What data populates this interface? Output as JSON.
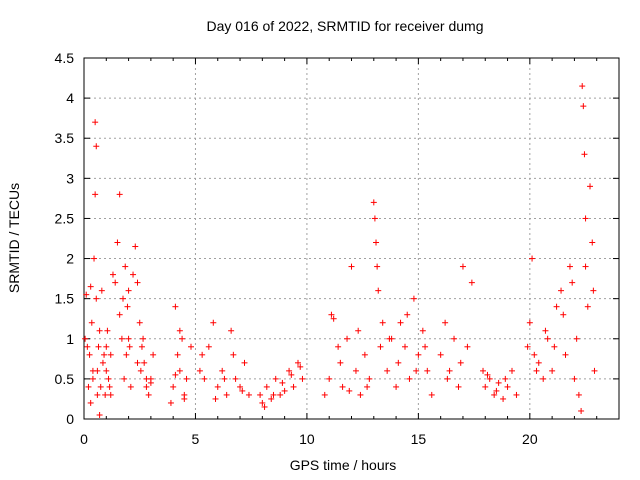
{
  "chart_data": {
    "type": "scatter",
    "title": "Day 016 of 2022, SRMTID for receiver dumg",
    "xlabel": "GPS time / hours",
    "ylabel": "SRMTID / TECUs",
    "xlim": [
      0,
      24
    ],
    "ylim": [
      0,
      4.5
    ],
    "x_ticks": [
      "0",
      "5",
      "10",
      "15",
      "20"
    ],
    "y_ticks": [
      "0",
      "0.5",
      "1",
      "1.5",
      "2",
      "2.5",
      "3",
      "3.5",
      "4",
      "4.5"
    ],
    "grid": true,
    "marker": "+",
    "color": "#ff0000",
    "series": [
      {
        "name": "SRMTID",
        "x": [
          0.05,
          0.1,
          0.15,
          0.2,
          0.25,
          0.3,
          0.35,
          0.4,
          0.45,
          0.5,
          0.5,
          0.55,
          0.55,
          0.6,
          0.6,
          0.65,
          0.7,
          0.75,
          0.8,
          0.85,
          0.9,
          0.95,
          1.0,
          1.05,
          1.1,
          1.15,
          1.2,
          1.3,
          1.4,
          1.5,
          1.6,
          1.7,
          1.75,
          1.8,
          1.85,
          1.9,
          1.95,
          2.0,
          2.05,
          2.1,
          2.2,
          2.3,
          2.4,
          2.5,
          2.55,
          2.6,
          2.65,
          2.7,
          2.8,
          2.9,
          3.0,
          3.1,
          0.3,
          0.4,
          0.7,
          1.0,
          1.2,
          1.6,
          2.0,
          2.4,
          2.8,
          3.0,
          3.9,
          4.0,
          4.1,
          4.2,
          4.3,
          4.4,
          4.5,
          4.6,
          4.8,
          4.1,
          4.3,
          4.5,
          5.2,
          5.3,
          5.4,
          5.6,
          5.8,
          6.0,
          6.2,
          6.4,
          6.6,
          6.8,
          7.0,
          7.2,
          7.4,
          5.9,
          6.3,
          6.7,
          7.1,
          7.9,
          8.0,
          8.2,
          8.4,
          8.6,
          8.8,
          9.0,
          9.2,
          9.4,
          9.6,
          9.8,
          8.1,
          8.5,
          8.9,
          9.3,
          9.7,
          10.8,
          11.0,
          11.2,
          11.4,
          11.6,
          11.8,
          12.0,
          12.2,
          12.4,
          12.6,
          12.8,
          11.1,
          11.5,
          11.9,
          12.3,
          12.7,
          13.0,
          13.05,
          13.1,
          13.15,
          13.2,
          13.4,
          13.6,
          13.8,
          14.0,
          14.2,
          14.4,
          14.6,
          14.8,
          15.0,
          15.2,
          15.4,
          15.6,
          13.3,
          13.7,
          14.1,
          14.5,
          14.9,
          15.3,
          16.0,
          16.2,
          16.4,
          16.6,
          16.8,
          17.0,
          17.2,
          17.4,
          16.3,
          16.9,
          17.9,
          18.0,
          18.2,
          18.4,
          18.6,
          18.8,
          19.0,
          19.2,
          19.4,
          18.1,
          18.5,
          18.9,
          19.9,
          20.0,
          20.1,
          20.2,
          20.4,
          20.6,
          20.8,
          21.0,
          21.2,
          21.4,
          21.6,
          21.8,
          20.3,
          20.7,
          21.1,
          21.5,
          21.9,
          22.0,
          22.2,
          22.3,
          22.35,
          22.4,
          22.45,
          22.5,
          22.6,
          22.7,
          22.8,
          22.9,
          22.1,
          22.5,
          22.85
        ],
        "y": [
          1.0,
          1.55,
          0.9,
          0.4,
          0.8,
          1.65,
          1.2,
          0.5,
          2.0,
          3.7,
          2.8,
          3.4,
          1.5,
          0.6,
          0.3,
          0.9,
          0.05,
          0.4,
          1.6,
          0.7,
          0.8,
          0.3,
          0.6,
          1.1,
          0.5,
          0.4,
          0.8,
          1.8,
          1.7,
          2.2,
          2.8,
          1.0,
          1.5,
          0.5,
          1.9,
          0.8,
          1.4,
          1.6,
          0.9,
          0.4,
          1.8,
          2.15,
          1.7,
          1.2,
          0.6,
          0.9,
          1.0,
          0.7,
          0.4,
          0.3,
          0.5,
          0.8,
          0.2,
          0.6,
          1.1,
          0.9,
          0.3,
          1.3,
          1.0,
          0.7,
          0.5,
          0.45,
          0.2,
          0.4,
          1.4,
          0.8,
          0.6,
          1.0,
          0.3,
          0.5,
          0.9,
          0.55,
          1.1,
          0.25,
          0.6,
          0.8,
          0.5,
          0.9,
          1.2,
          0.4,
          0.6,
          0.3,
          1.1,
          0.5,
          0.4,
          0.7,
          0.3,
          0.25,
          0.5,
          0.8,
          0.35,
          0.3,
          0.2,
          0.4,
          0.25,
          0.5,
          0.3,
          0.35,
          0.6,
          0.4,
          0.7,
          0.5,
          0.15,
          0.3,
          0.45,
          0.55,
          0.65,
          0.3,
          0.5,
          1.25,
          0.9,
          0.4,
          1.0,
          1.9,
          0.6,
          0.3,
          0.8,
          0.5,
          1.3,
          0.7,
          0.35,
          1.1,
          0.4,
          2.7,
          2.5,
          2.2,
          1.9,
          1.6,
          1.2,
          0.6,
          1.0,
          0.4,
          1.2,
          0.9,
          0.5,
          1.5,
          0.8,
          1.1,
          0.6,
          0.3,
          0.9,
          1.0,
          0.7,
          1.3,
          0.6,
          0.9,
          0.8,
          1.2,
          0.6,
          1.0,
          0.4,
          1.9,
          0.9,
          1.7,
          0.5,
          0.7,
          0.6,
          0.4,
          0.5,
          0.3,
          0.45,
          0.25,
          0.4,
          0.6,
          0.3,
          0.55,
          0.35,
          0.5,
          0.9,
          1.2,
          2.0,
          0.8,
          0.7,
          0.5,
          1.0,
          0.6,
          1.4,
          1.6,
          0.8,
          1.9,
          0.6,
          1.1,
          0.9,
          1.3,
          1.7,
          0.5,
          0.3,
          0.1,
          4.15,
          3.9,
          3.3,
          2.5,
          1.4,
          2.9,
          2.2,
          0.6,
          1.0,
          1.9,
          1.6
        ]
      }
    ]
  }
}
